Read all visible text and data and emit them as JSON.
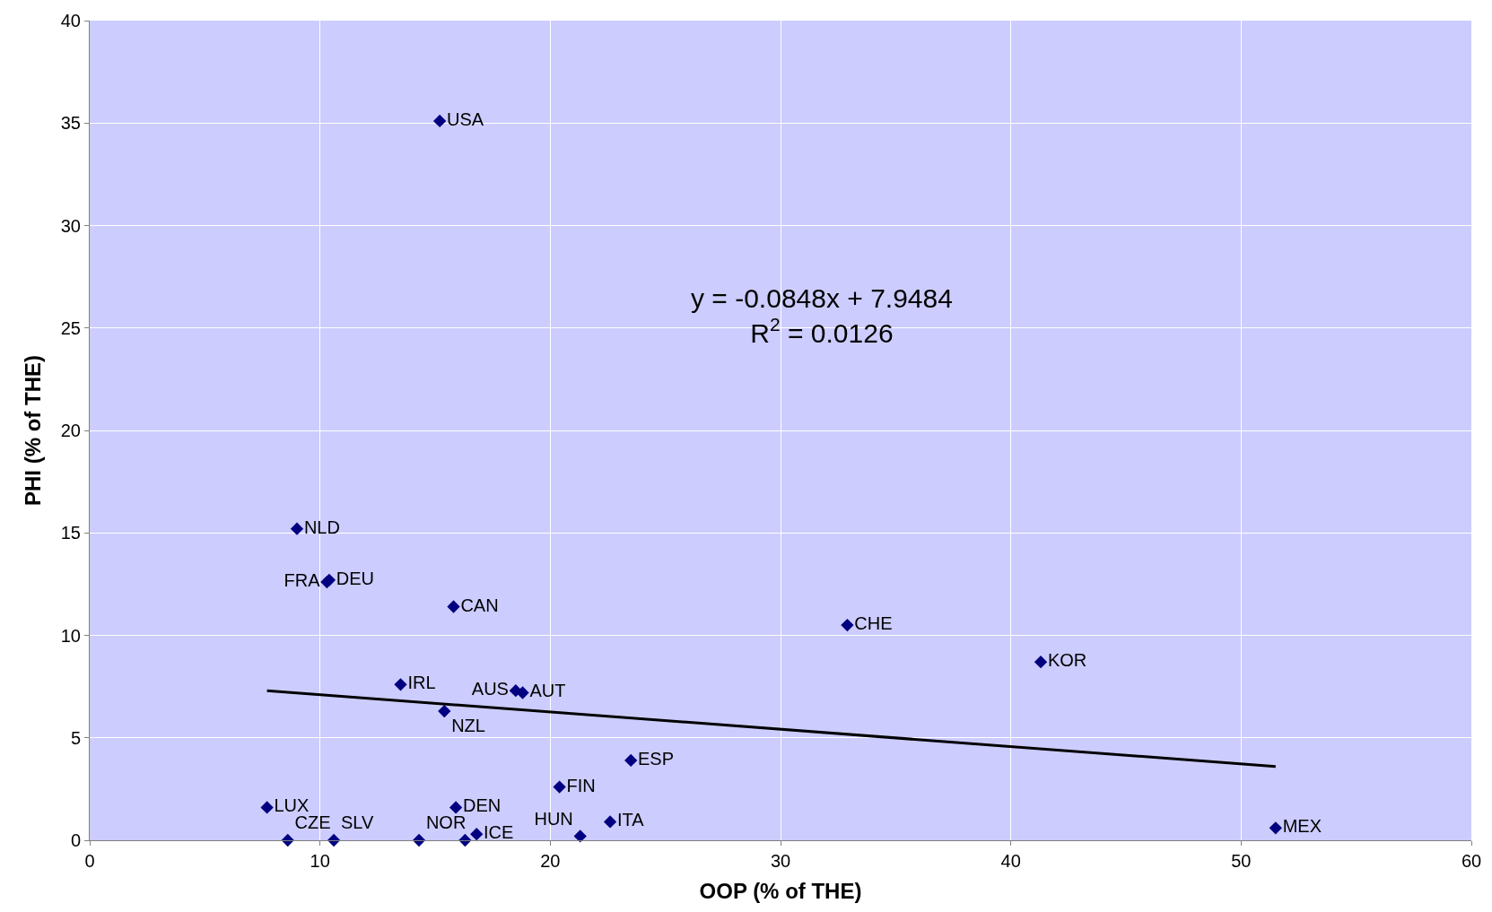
{
  "chart_data": {
    "type": "scatter",
    "xlabel": "OOP (% of THE)",
    "ylabel": "PHI (% of THE)",
    "xlim": [
      0,
      60
    ],
    "xticks": [
      0,
      10,
      20,
      30,
      40,
      50,
      60
    ],
    "ylim": [
      0,
      40
    ],
    "yticks": [
      0,
      5,
      10,
      15,
      20,
      25,
      30,
      35,
      40
    ],
    "grid": true,
    "marker": "diamond",
    "annotations": [
      "y = -0.0848x + 7.9484\nR$^{2}$ = 0.0126"
    ],
    "series": [
      {
        "color": "#000080",
        "x": [
          15.2,
          9.0,
          10.3,
          10.4,
          15.8,
          32.9,
          41.3,
          13.5,
          18.5,
          18.8,
          15.4,
          23.5,
          20.4,
          7.7,
          15.9,
          22.6,
          8.6,
          10.6,
          14.3,
          16.3,
          16.8,
          21.3,
          51.5
        ],
        "values": [
          35.1,
          15.2,
          12.6,
          12.7,
          11.4,
          10.5,
          8.7,
          7.6,
          7.3,
          7.2,
          6.3,
          3.9,
          2.6,
          1.6,
          1.6,
          0.9,
          0.0,
          0.0,
          0.0,
          0.0,
          0.3,
          0.2,
          0.6
        ],
        "value_labels": [
          "USA",
          "NLD",
          "FRA",
          "DEU",
          "CAN",
          "CHE",
          "KOR",
          "IRL",
          "AUS",
          "AUT",
          "NZL",
          "ESP",
          "FIN",
          "LUX",
          "DEN",
          "ITA",
          "CZE",
          "SLV",
          "NOR",
          null,
          "ICE",
          "HUN",
          "MEX"
        ]
      },
      {
        "type": "line",
        "color": "#000000",
        "x": [
          7.7,
          51.5
        ],
        "values": [
          7.3,
          3.6
        ],
        "marker": "none",
        "line_style": "solid"
      }
    ]
  }
}
